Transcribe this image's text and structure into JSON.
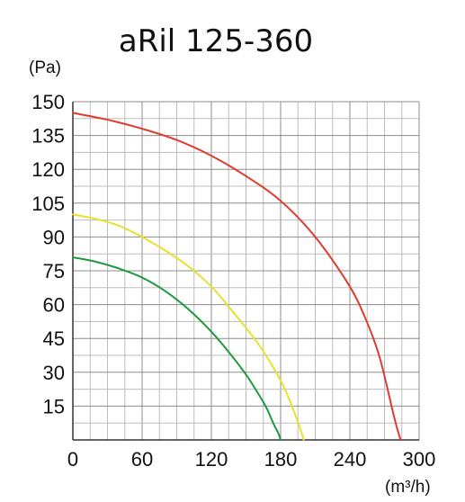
{
  "chart_data": {
    "type": "line",
    "title": "aRil 125-360",
    "ylabel": "(Pa)",
    "xlabel": "(m³/h)",
    "xlim": [
      0,
      300
    ],
    "ylim": [
      0,
      150
    ],
    "x_ticks": [
      0,
      60,
      120,
      180,
      240,
      300
    ],
    "y_ticks": [
      15,
      30,
      45,
      60,
      75,
      90,
      105,
      120,
      135,
      150
    ],
    "x_minor_step": 15,
    "y_minor_step": 7.5,
    "grid": true,
    "series": [
      {
        "color": "#e03b2e",
        "x": [
          0,
          30,
          60,
          90,
          120,
          150,
          180,
          210,
          240,
          255,
          265,
          272,
          277,
          281,
          284
        ],
        "y": [
          145,
          142,
          138,
          133,
          126,
          117,
          106,
          90,
          68,
          52,
          38,
          24,
          13,
          5,
          0
        ]
      },
      {
        "color": "#e8e02a",
        "x": [
          0,
          20,
          40,
          60,
          80,
          100,
          120,
          140,
          160,
          175,
          185,
          192,
          197,
          200
        ],
        "y": [
          100,
          98,
          95,
          90,
          84,
          77,
          68,
          56,
          43,
          31,
          21,
          12,
          5,
          0
        ]
      },
      {
        "color": "#1e9a3e",
        "x": [
          0,
          20,
          40,
          60,
          80,
          100,
          120,
          135,
          150,
          160,
          168,
          174,
          178,
          180
        ],
        "y": [
          81,
          79,
          76,
          72,
          66,
          58,
          48,
          39,
          29,
          21,
          14,
          7,
          3,
          0
        ]
      }
    ]
  }
}
